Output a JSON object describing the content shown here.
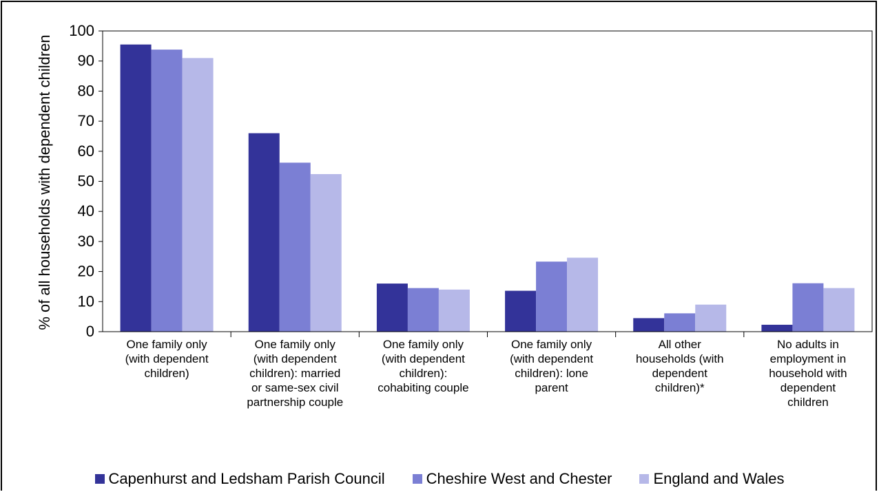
{
  "chart_data": {
    "type": "bar",
    "ylabel": "% of all households with dependent children",
    "xlabel": "",
    "ylim": [
      0,
      100
    ],
    "yticks": [
      0,
      10,
      20,
      30,
      40,
      50,
      60,
      70,
      80,
      90,
      100
    ],
    "grid": false,
    "legend_position": "bottom",
    "categories": [
      [
        "One family only",
        "(with dependent",
        "children)"
      ],
      [
        "One family only",
        "(with dependent",
        "children): married",
        "or same-sex civil",
        "partnership couple"
      ],
      [
        "One family only",
        "(with dependent",
        "children):",
        "cohabiting couple"
      ],
      [
        "One family only",
        "(with dependent",
        "children): lone",
        "parent"
      ],
      [
        "All other",
        "households (with",
        "dependent",
        "children)*"
      ],
      [
        "No adults in",
        "employment in",
        "household with",
        "dependent",
        "children"
      ]
    ],
    "series": [
      {
        "name": "Capenhurst and Ledsham Parish Council",
        "color": "#333399",
        "values": [
          95.5,
          66.0,
          16.0,
          13.6,
          4.5,
          2.3
        ]
      },
      {
        "name": "Cheshire West and Chester",
        "color": "#7b7fd4",
        "values": [
          93.8,
          56.2,
          14.5,
          23.3,
          6.1,
          16.1
        ]
      },
      {
        "name": "England and Wales",
        "color": "#b6b8e8",
        "values": [
          91.0,
          52.4,
          14.0,
          24.6,
          9.0,
          14.5
        ]
      }
    ]
  }
}
